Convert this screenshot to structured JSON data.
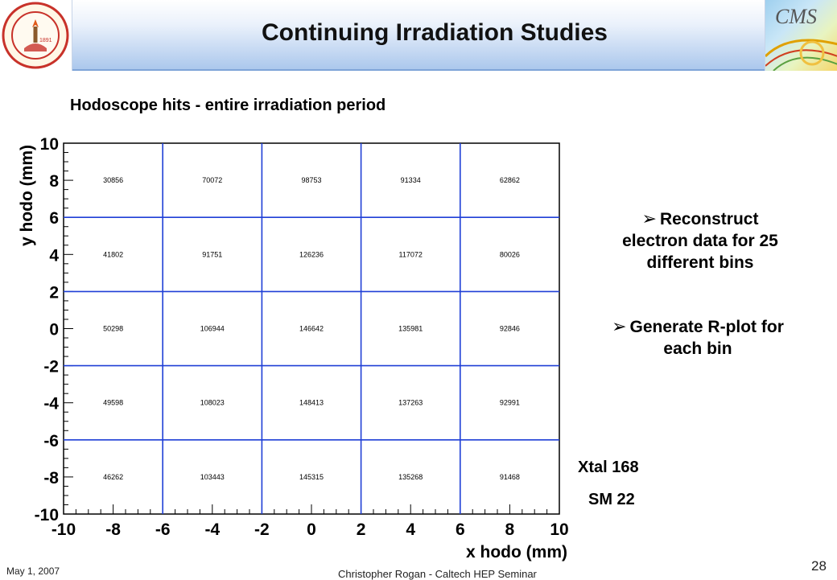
{
  "header": {
    "title": "Continuing Irradiation Studies",
    "left_logo": {
      "icon": "caltech-seal-icon",
      "text": "CALIFORNIA INSTITUTE OF TECHNOLOGY",
      "year": "1891"
    },
    "right_logo": {
      "icon": "cms-logo-icon",
      "text": "CMS"
    }
  },
  "subtitle": "Hodoscope hits - entire irradiation period",
  "chart_data": {
    "type": "heatmap",
    "xlabel": "x hodo (mm)",
    "ylabel": "y hodo (mm)",
    "xlim": [
      -10,
      10
    ],
    "ylim": [
      -10,
      10
    ],
    "x_ticks": [
      "-10",
      "-8",
      "-6",
      "-4",
      "-2",
      "0",
      "2",
      "4",
      "6",
      "8",
      "10"
    ],
    "y_ticks": [
      "10",
      "8",
      "6",
      "4",
      "2",
      "0",
      "-2",
      "-4",
      "-6",
      "-8",
      "-10"
    ],
    "x_bin_edges": [
      -10,
      -6,
      -2,
      2,
      6,
      10
    ],
    "y_bin_edges": [
      10,
      6,
      2,
      -2,
      -6,
      -10
    ],
    "counts": [
      [
        "30856",
        "70072",
        "98753",
        "91334",
        "62862"
      ],
      [
        "41802",
        "91751",
        "126236",
        "117072",
        "80026"
      ],
      [
        "50298",
        "106944",
        "146642",
        "135981",
        "92846"
      ],
      [
        "49598",
        "108023",
        "148413",
        "137263",
        "92991"
      ],
      [
        "46262",
        "103443",
        "145315",
        "135268",
        "91468"
      ]
    ],
    "grid_color": "#1f3fd6"
  },
  "bullets": [
    {
      "arrow": "➢",
      "text_line1": "Reconstruct",
      "text_line2": "electron data for 25",
      "text_line3": "different bins"
    },
    {
      "arrow": "➢",
      "text_line1": "Generate R-plot for",
      "text_line2": "each bin"
    }
  ],
  "crystal_info": {
    "xtal": "Xtal 168",
    "sm": "SM 22"
  },
  "footer": {
    "date": "May 1, 2007",
    "author": "Christopher Rogan - Caltech HEP Seminar",
    "page": "28"
  }
}
